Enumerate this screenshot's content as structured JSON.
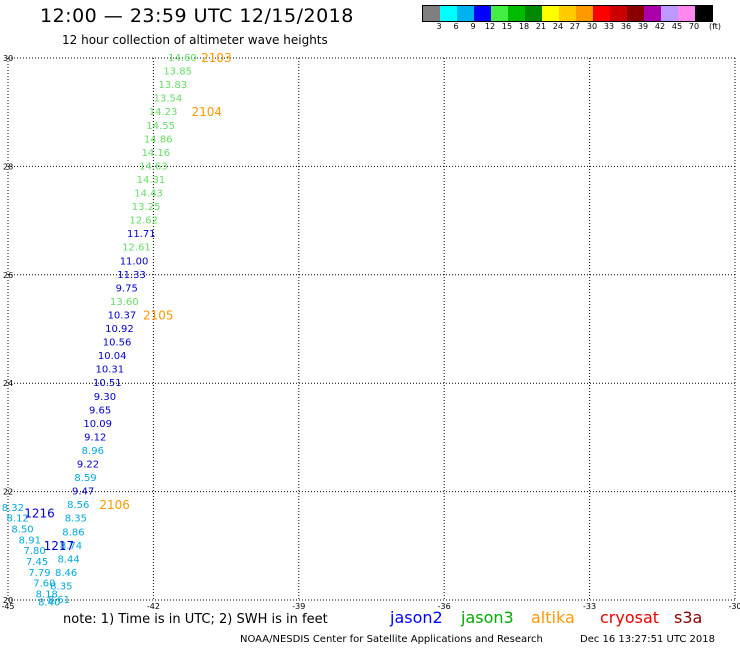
{
  "title": "12:00 — 23:59 UTC 12/15/2018",
  "subtitle": "12 hour collection of altimeter wave heights",
  "colorbar": {
    "colors": [
      "#7f7f7f",
      "#00ffff",
      "#00b2ee",
      "#0000ff",
      "#44ee44",
      "#00bb00",
      "#008800",
      "#ffff00",
      "#ffcc00",
      "#ff9900",
      "#ff0000",
      "#cc0000",
      "#880000",
      "#aa00aa",
      "#bb99ff",
      "#ff88ee",
      "#000000"
    ],
    "labels": [
      "3",
      "6",
      "9",
      "12",
      "15",
      "18",
      "21",
      "24",
      "27",
      "30",
      "33",
      "36",
      "39",
      "42",
      "45",
      "70",
      "(ft)"
    ]
  },
  "note": "note:  1) Time is in UTC;  2) SWH is in feet",
  "legend": [
    {
      "name": "jason2",
      "color": "#0000ff"
    },
    {
      "name": "jason3",
      "color": "#00aa00"
    },
    {
      "name": "altika",
      "color": "#ff9900"
    },
    {
      "name": "cryosat",
      "color": "#ee0000"
    },
    {
      "name": "s3a",
      "color": "#880000"
    }
  ],
  "credit": "NOAA/NESDIS Center for Satellite Applications and Research",
  "stamp": "Dec 16 13:27:51 UTC 2018",
  "chart_data": {
    "type": "scatter",
    "xlim": [
      -45,
      -30
    ],
    "ylim": [
      20,
      30
    ],
    "x_ticks": [
      "-45",
      "-42",
      "-39",
      "-36",
      "-33",
      "-30"
    ],
    "y_ticks": [
      "20",
      "22",
      "24",
      "26",
      "28",
      "30"
    ],
    "grid": true,
    "colors": {
      "jason2": "#0000cc",
      "jason3": "#66dd66",
      "cyan": "#00aadd",
      "altika": "#ff9900"
    },
    "points": [
      {
        "lon": -41.4,
        "lat": 30.0,
        "label": "14.60",
        "c": "jason3"
      },
      {
        "lon": -41.5,
        "lat": 29.75,
        "label": "13.85",
        "c": "jason3"
      },
      {
        "lon": -41.6,
        "lat": 29.5,
        "label": "13.83",
        "c": "jason3"
      },
      {
        "lon": -41.7,
        "lat": 29.25,
        "label": "13.54",
        "c": "jason3"
      },
      {
        "lon": -41.8,
        "lat": 29.0,
        "label": "14.23",
        "c": "jason3"
      },
      {
        "lon": -41.85,
        "lat": 28.75,
        "label": "14.55",
        "c": "jason3"
      },
      {
        "lon": -41.9,
        "lat": 28.5,
        "label": "14.86",
        "c": "jason3"
      },
      {
        "lon": -41.95,
        "lat": 28.25,
        "label": "14.16",
        "c": "jason3"
      },
      {
        "lon": -42.0,
        "lat": 28.0,
        "label": "14.63",
        "c": "jason3"
      },
      {
        "lon": -42.05,
        "lat": 27.75,
        "label": "14.31",
        "c": "jason3"
      },
      {
        "lon": -42.1,
        "lat": 27.5,
        "label": "14.43",
        "c": "jason3"
      },
      {
        "lon": -42.15,
        "lat": 27.25,
        "label": "13.25",
        "c": "jason3"
      },
      {
        "lon": -42.2,
        "lat": 27.0,
        "label": "12.62",
        "c": "jason3"
      },
      {
        "lon": -42.25,
        "lat": 26.75,
        "label": "11.71",
        "c": "jason2"
      },
      {
        "lon": -42.35,
        "lat": 26.5,
        "label": "12.61",
        "c": "jason3"
      },
      {
        "lon": -42.4,
        "lat": 26.25,
        "label": "11.00",
        "c": "jason2"
      },
      {
        "lon": -42.45,
        "lat": 26.0,
        "label": "11.33",
        "c": "jason2"
      },
      {
        "lon": -42.55,
        "lat": 25.75,
        "label": "9.75",
        "c": "jason2"
      },
      {
        "lon": -42.6,
        "lat": 25.5,
        "label": "13.60",
        "c": "jason3"
      },
      {
        "lon": -42.65,
        "lat": 25.25,
        "label": "10.37",
        "c": "jason2"
      },
      {
        "lon": -42.7,
        "lat": 25.0,
        "label": "10.92",
        "c": "jason2"
      },
      {
        "lon": -42.75,
        "lat": 24.75,
        "label": "10.56",
        "c": "jason2"
      },
      {
        "lon": -42.85,
        "lat": 24.5,
        "label": "10.04",
        "c": "jason2"
      },
      {
        "lon": -42.9,
        "lat": 24.25,
        "label": "10.31",
        "c": "jason2"
      },
      {
        "lon": -42.95,
        "lat": 24.0,
        "label": "10.51",
        "c": "jason2"
      },
      {
        "lon": -43.0,
        "lat": 23.75,
        "label": "9.30",
        "c": "jason2"
      },
      {
        "lon": -43.1,
        "lat": 23.5,
        "label": "9.65",
        "c": "jason2"
      },
      {
        "lon": -43.15,
        "lat": 23.25,
        "label": "10.09",
        "c": "jason2"
      },
      {
        "lon": -43.2,
        "lat": 23.0,
        "label": "9.12",
        "c": "jason2"
      },
      {
        "lon": -43.25,
        "lat": 22.75,
        "label": "8.96",
        "c": "cyan"
      },
      {
        "lon": -43.35,
        "lat": 22.5,
        "label": "9.22",
        "c": "jason2"
      },
      {
        "lon": -43.4,
        "lat": 22.25,
        "label": "8.59",
        "c": "cyan"
      },
      {
        "lon": -43.45,
        "lat": 22.0,
        "label": "9.47",
        "c": "jason2"
      },
      {
        "lon": -43.55,
        "lat": 21.75,
        "label": "8.56",
        "c": "cyan"
      },
      {
        "lon": -43.6,
        "lat": 21.5,
        "label": "8.35",
        "c": "cyan"
      },
      {
        "lon": -43.65,
        "lat": 21.25,
        "label": "8.86",
        "c": "cyan"
      },
      {
        "lon": -43.7,
        "lat": 21.0,
        "label": "8.74",
        "c": "cyan"
      },
      {
        "lon": -43.75,
        "lat": 20.75,
        "label": "8.44",
        "c": "cyan"
      },
      {
        "lon": -43.8,
        "lat": 20.5,
        "label": "8.46",
        "c": "cyan"
      },
      {
        "lon": -43.9,
        "lat": 20.25,
        "label": "8.35",
        "c": "cyan"
      },
      {
        "lon": -43.95,
        "lat": 20.0,
        "label": "8.61",
        "c": "cyan"
      },
      {
        "lon": -44.9,
        "lat": 21.7,
        "label": "8.32",
        "c": "cyan"
      },
      {
        "lon": -44.8,
        "lat": 21.5,
        "label": "8.12",
        "c": "cyan"
      },
      {
        "lon": -44.7,
        "lat": 21.3,
        "label": "8.50",
        "c": "cyan"
      },
      {
        "lon": -44.55,
        "lat": 21.1,
        "label": "8.91",
        "c": "cyan"
      },
      {
        "lon": -44.45,
        "lat": 20.9,
        "label": "7.80",
        "c": "cyan"
      },
      {
        "lon": -44.4,
        "lat": 20.7,
        "label": "7.45",
        "c": "cyan"
      },
      {
        "lon": -44.35,
        "lat": 20.5,
        "label": "7.79",
        "c": "cyan"
      },
      {
        "lon": -44.25,
        "lat": 20.3,
        "label": "7.60",
        "c": "cyan"
      },
      {
        "lon": -44.2,
        "lat": 20.1,
        "label": "8.18",
        "c": "cyan"
      },
      {
        "lon": -44.15,
        "lat": 19.95,
        "label": "8.40",
        "c": "cyan"
      }
    ],
    "time_labels": [
      {
        "lon": -40.7,
        "lat": 30.0,
        "label": "2103",
        "c": "altika"
      },
      {
        "lon": -40.9,
        "lat": 29.0,
        "label": "2104",
        "c": "altika"
      },
      {
        "lon": -41.9,
        "lat": 25.25,
        "label": "2105",
        "c": "altika"
      },
      {
        "lon": -42.8,
        "lat": 21.75,
        "label": "2106",
        "c": "altika"
      },
      {
        "lon": -44.35,
        "lat": 21.6,
        "label": "1216",
        "c": "jason2"
      },
      {
        "lon": -43.95,
        "lat": 21.0,
        "label": "1217",
        "c": "jason2"
      }
    ]
  }
}
